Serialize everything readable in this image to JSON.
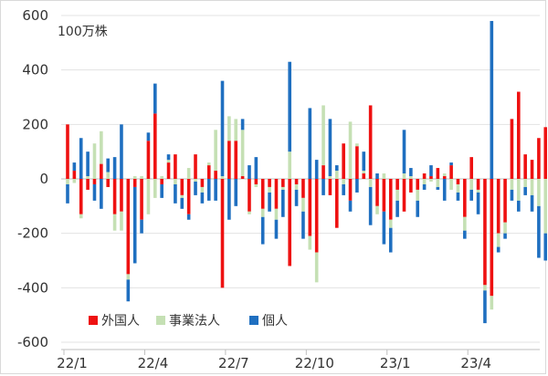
{
  "chart_data": {
    "type": "bar",
    "stacked": true,
    "unit_label": "100万株",
    "ylim": [
      -600,
      600
    ],
    "yticks": [
      600,
      400,
      200,
      0,
      -200,
      -400,
      -600
    ],
    "ytick_labels": [
      "600",
      "400",
      "200",
      "0",
      "-200",
      "-400",
      "-600"
    ],
    "xtick_labels": [
      "22/1",
      "22/4",
      "22/7",
      "22/10",
      "23/1",
      "23/4"
    ],
    "grid": true,
    "legend_position": "bottom-left",
    "series": [
      {
        "name": "外国人",
        "color": "#ee1111",
        "values": [
          200,
          30,
          -130,
          -40,
          -20,
          55,
          -30,
          -130,
          -120,
          -350,
          -30,
          -150,
          140,
          240,
          -20,
          60,
          90,
          -60,
          -130,
          90,
          -30,
          50,
          30,
          -400,
          140,
          140,
          10,
          -120,
          -20,
          -110,
          -30,
          -110,
          -30,
          -320,
          -20,
          -70,
          -210,
          -270,
          50,
          -60,
          -180,
          130,
          -80,
          120,
          20,
          270,
          -100,
          -120,
          -150,
          -40,
          -120,
          -50,
          -40,
          20,
          10,
          40,
          10,
          50,
          -20,
          -140,
          80,
          -40,
          -390,
          -430,
          -200,
          -160,
          220,
          320,
          90,
          70,
          150,
          190
        ]
      },
      {
        "name": "事業法人",
        "color": "#c5e0b4",
        "values": [
          -20,
          -15,
          -15,
          10,
          130,
          120,
          25,
          -60,
          -70,
          -20,
          10,
          10,
          -130,
          -70,
          10,
          10,
          -20,
          -10,
          40,
          -10,
          -20,
          10,
          150,
          10,
          90,
          80,
          170,
          -10,
          -10,
          -30,
          -20,
          -40,
          -10,
          100,
          -20,
          -50,
          -50,
          -110,
          220,
          10,
          30,
          -20,
          210,
          10,
          10,
          -30,
          -30,
          20,
          -30,
          -40,
          20,
          10,
          -40,
          -20,
          -10,
          -30,
          10,
          -40,
          -30,
          -50,
          -40,
          -10,
          -20,
          -50,
          -50,
          -40,
          -40,
          -80,
          -30,
          -60,
          -100,
          -200
        ]
      },
      {
        "name": "個人",
        "color": "#1f6fc0",
        "values": [
          -70,
          30,
          150,
          90,
          -60,
          -110,
          50,
          80,
          200,
          -80,
          -280,
          -50,
          30,
          110,
          -50,
          20,
          -70,
          -40,
          -20,
          -50,
          -40,
          -80,
          -80,
          350,
          -150,
          -100,
          40,
          50,
          80,
          -100,
          -70,
          -70,
          -100,
          330,
          -60,
          -100,
          260,
          70,
          -60,
          210,
          20,
          -40,
          -40,
          -50,
          70,
          -140,
          20,
          -120,
          -90,
          -60,
          160,
          30,
          -60,
          -20,
          40,
          -10,
          -80,
          10,
          -30,
          -30,
          -40,
          -80,
          -120,
          580,
          -20,
          -20,
          -40,
          -40,
          -30,
          -60,
          -190,
          -100
        ]
      }
    ]
  }
}
